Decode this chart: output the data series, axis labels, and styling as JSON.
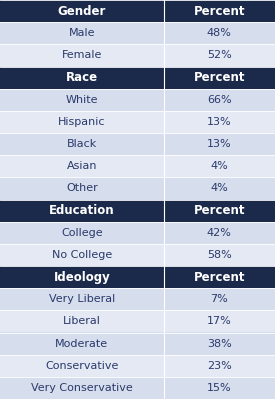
{
  "header_bg": "#1b2a4a",
  "header_text": "#ffffff",
  "row_bg_even": "#d6dded",
  "row_bg_odd": "#e4e9f4",
  "row_text": "#2a3a6a",
  "col_split": 0.595,
  "rows": [
    {
      "label": "Gender",
      "value": "Percent",
      "is_header": true
    },
    {
      "label": "Male",
      "value": "48%",
      "is_header": false
    },
    {
      "label": "Female",
      "value": "52%",
      "is_header": false
    },
    {
      "label": "Race",
      "value": "Percent",
      "is_header": true
    },
    {
      "label": "White",
      "value": "66%",
      "is_header": false
    },
    {
      "label": "Hispanic",
      "value": "13%",
      "is_header": false
    },
    {
      "label": "Black",
      "value": "13%",
      "is_header": false
    },
    {
      "label": "Asian",
      "value": "4%",
      "is_header": false
    },
    {
      "label": "Other",
      "value": "4%",
      "is_header": false
    },
    {
      "label": "Education",
      "value": "Percent",
      "is_header": true
    },
    {
      "label": "College",
      "value": "42%",
      "is_header": false
    },
    {
      "label": "No College",
      "value": "58%",
      "is_header": false
    },
    {
      "label": "Ideology",
      "value": "Percent",
      "is_header": true
    },
    {
      "label": "Very Liberal",
      "value": "7%",
      "is_header": false
    },
    {
      "label": "Liberal",
      "value": "17%",
      "is_header": false
    },
    {
      "label": "Moderate",
      "value": "38%",
      "is_header": false
    },
    {
      "label": "Conservative",
      "value": "23%",
      "is_header": false
    },
    {
      "label": "Very Conservative",
      "value": "15%",
      "is_header": false
    }
  ],
  "figsize": [
    2.75,
    3.99
  ],
  "dpi": 100,
  "font_size_header": 8.5,
  "font_size_row": 8.0
}
